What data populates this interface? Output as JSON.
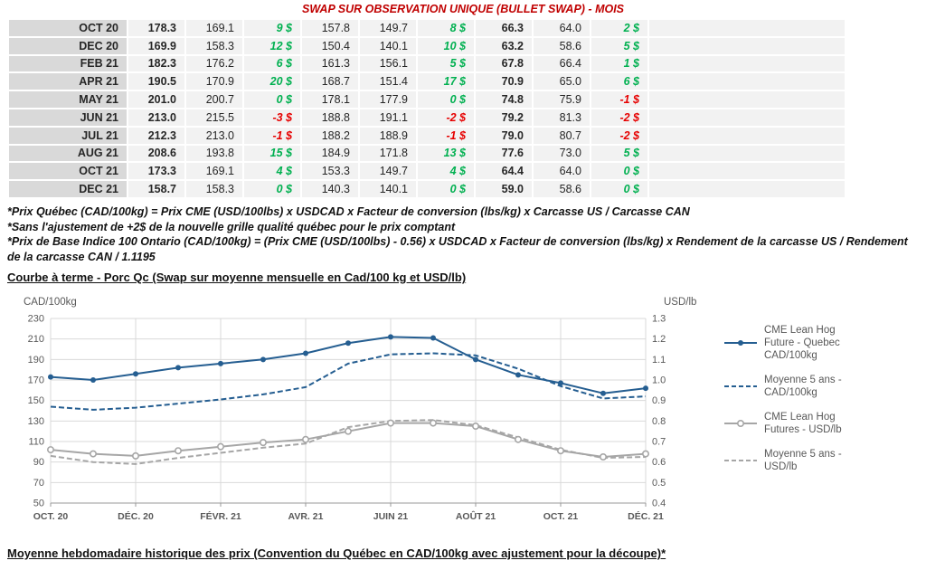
{
  "title": "SWAP SUR OBSERVATION UNIQUE (BULLET SWAP) - MOIS",
  "colors": {
    "title_red": "#c00000",
    "positive_green": "#00b050",
    "negative_red": "#e60000",
    "blue_series": "#255e91",
    "gray_series": "#a6a6a6",
    "month_cell_bg": "#d9d9d9",
    "value_cell_bg": "#f2f2f2"
  },
  "table": {
    "rows": [
      [
        "OCT 20",
        "178.3",
        "169.1",
        "9 $",
        "157.8",
        "149.7",
        "8 $",
        "66.3",
        "64.0",
        "2 $"
      ],
      [
        "DEC 20",
        "169.9",
        "158.3",
        "12 $",
        "150.4",
        "140.1",
        "10 $",
        "63.2",
        "58.6",
        "5 $"
      ],
      [
        "FEB 21",
        "182.3",
        "176.2",
        "6 $",
        "161.3",
        "156.1",
        "5 $",
        "67.8",
        "66.4",
        "1 $"
      ],
      [
        "APR 21",
        "190.5",
        "170.9",
        "20 $",
        "168.7",
        "151.4",
        "17 $",
        "70.9",
        "65.0",
        "6 $"
      ],
      [
        "MAY 21",
        "201.0",
        "200.7",
        "0 $",
        "178.1",
        "177.9",
        "0 $",
        "74.8",
        "75.9",
        "-1 $"
      ],
      [
        "JUN 21",
        "213.0",
        "215.5",
        "-3 $",
        "188.8",
        "191.1",
        "-2 $",
        "79.2",
        "81.3",
        "-2 $"
      ],
      [
        "JUL 21",
        "212.3",
        "213.0",
        "-1 $",
        "188.2",
        "188.9",
        "-1 $",
        "79.0",
        "80.7",
        "-2 $"
      ],
      [
        "AUG 21",
        "208.6",
        "193.8",
        "15 $",
        "184.9",
        "171.8",
        "13 $",
        "77.6",
        "73.0",
        "5 $"
      ],
      [
        "OCT 21",
        "173.3",
        "169.1",
        "4 $",
        "153.3",
        "149.7",
        "4 $",
        "64.4",
        "64.0",
        "0 $"
      ],
      [
        "DEC 21",
        "158.7",
        "158.3",
        "0 $",
        "140.3",
        "140.1",
        "0 $",
        "59.0",
        "58.6",
        "0 $"
      ]
    ]
  },
  "footnotes": [
    "*Prix Québec (CAD/100kg) = Prix CME (USD/100lbs) x USDCAD x Facteur de conversion (lbs/kg) x Carcasse US / Carcasse CAN",
    "*Sans l'ajustement de +2$ de la nouvelle grille qualité québec pour le prix comptant",
    "*Prix de Base Indice 100 Ontario (CAD/100kg) = (Prix CME (USD/100lbs) - 0.56) x USDCAD x Facteur de conversion (lbs/kg) x Rendement de la carcasse US / Rendement de la carcasse CAN / 1.1195"
  ],
  "headers": {
    "bottom": "Moyenne hebdomadaire historique des prix (Convention du Québec en CAD/100kg avec ajustement pour la découpe)*"
  },
  "chart_data": {
    "type": "line",
    "title": "Courbe à terme - Porc Qc (Swap sur moyenne mensuelle en Cad/100 kg et USD/lb)",
    "x_labels": [
      "OCT. 20",
      "DÉC. 20",
      "FÉVR. 21",
      "AVR. 21",
      "JUIN 21",
      "AOÛT 21",
      "OCT. 21",
      "DÉC. 21"
    ],
    "left_axis": {
      "label": "CAD/100kg",
      "min": 50,
      "max": 230,
      "ticks": [
        230,
        210,
        190,
        170,
        150,
        130,
        110,
        90,
        70,
        50
      ]
    },
    "right_axis": {
      "label": "USD/lb",
      "min": 0.4,
      "max": 1.3,
      "ticks": [
        1.3,
        1.2,
        1.1,
        1.0,
        0.9,
        0.8,
        0.7,
        0.6,
        0.5,
        0.4
      ]
    },
    "grid": true,
    "legend_position": "right",
    "series": [
      {
        "name": "CME Lean Hog Future - Quebec CAD/100kg",
        "axis": "left",
        "style": "solid",
        "marker": "dot",
        "color": "#255e91",
        "values": [
          173,
          170,
          176,
          182,
          186,
          190,
          196,
          206,
          212,
          211,
          190,
          175,
          167,
          157,
          162
        ]
      },
      {
        "name": "Moyenne 5 ans - CAD/100kg",
        "axis": "left",
        "style": "dashed",
        "marker": "none",
        "color": "#255e91",
        "values": [
          144,
          141,
          143,
          147,
          151,
          156,
          163,
          186,
          195,
          196,
          194,
          181,
          164,
          152,
          154
        ]
      },
      {
        "name": "CME Lean Hog Futures - USD/lb",
        "axis": "right",
        "style": "solid",
        "marker": "circle",
        "color": "#a6a6a6",
        "values": [
          0.66,
          0.64,
          0.63,
          0.655,
          0.675,
          0.695,
          0.71,
          0.75,
          0.79,
          0.79,
          0.775,
          0.71,
          0.655,
          0.625,
          0.64
        ]
      },
      {
        "name": "Moyenne 5 ans - USD/lb",
        "axis": "right",
        "style": "dashed",
        "marker": "none",
        "color": "#a6a6a6",
        "values": [
          0.63,
          0.6,
          0.59,
          0.62,
          0.645,
          0.67,
          0.69,
          0.77,
          0.8,
          0.805,
          0.78,
          0.72,
          0.66,
          0.62,
          0.625
        ]
      }
    ]
  }
}
